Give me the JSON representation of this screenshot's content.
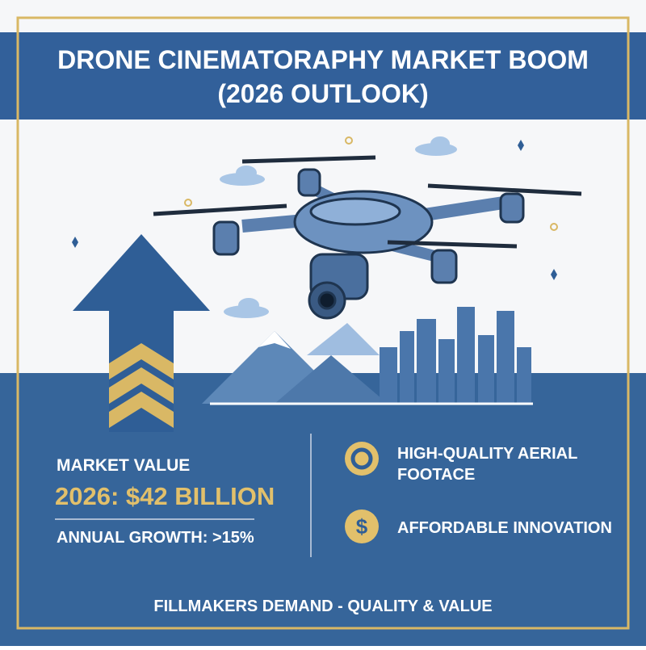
{
  "header": {
    "title_lines": [
      "DRONE CINEMATORAPHY MARKET BOOM",
      "(2026 OUTLOOK)"
    ]
  },
  "stats": {
    "label": "MARKET VALUE",
    "value": "2026: $42 BILLION",
    "growth": "ANNUAL GROWTH: >15%"
  },
  "features": [
    {
      "lines": [
        "HIGH-QUALITY AERIAL",
        "FOOTACE"
      ]
    },
    {
      "icon": "$",
      "lines": [
        "AFFORDABLE INNOVATION"
      ]
    }
  ],
  "footer": {
    "text": "FILLMAKERS DEMAND - QUALITY & VALUE"
  }
}
